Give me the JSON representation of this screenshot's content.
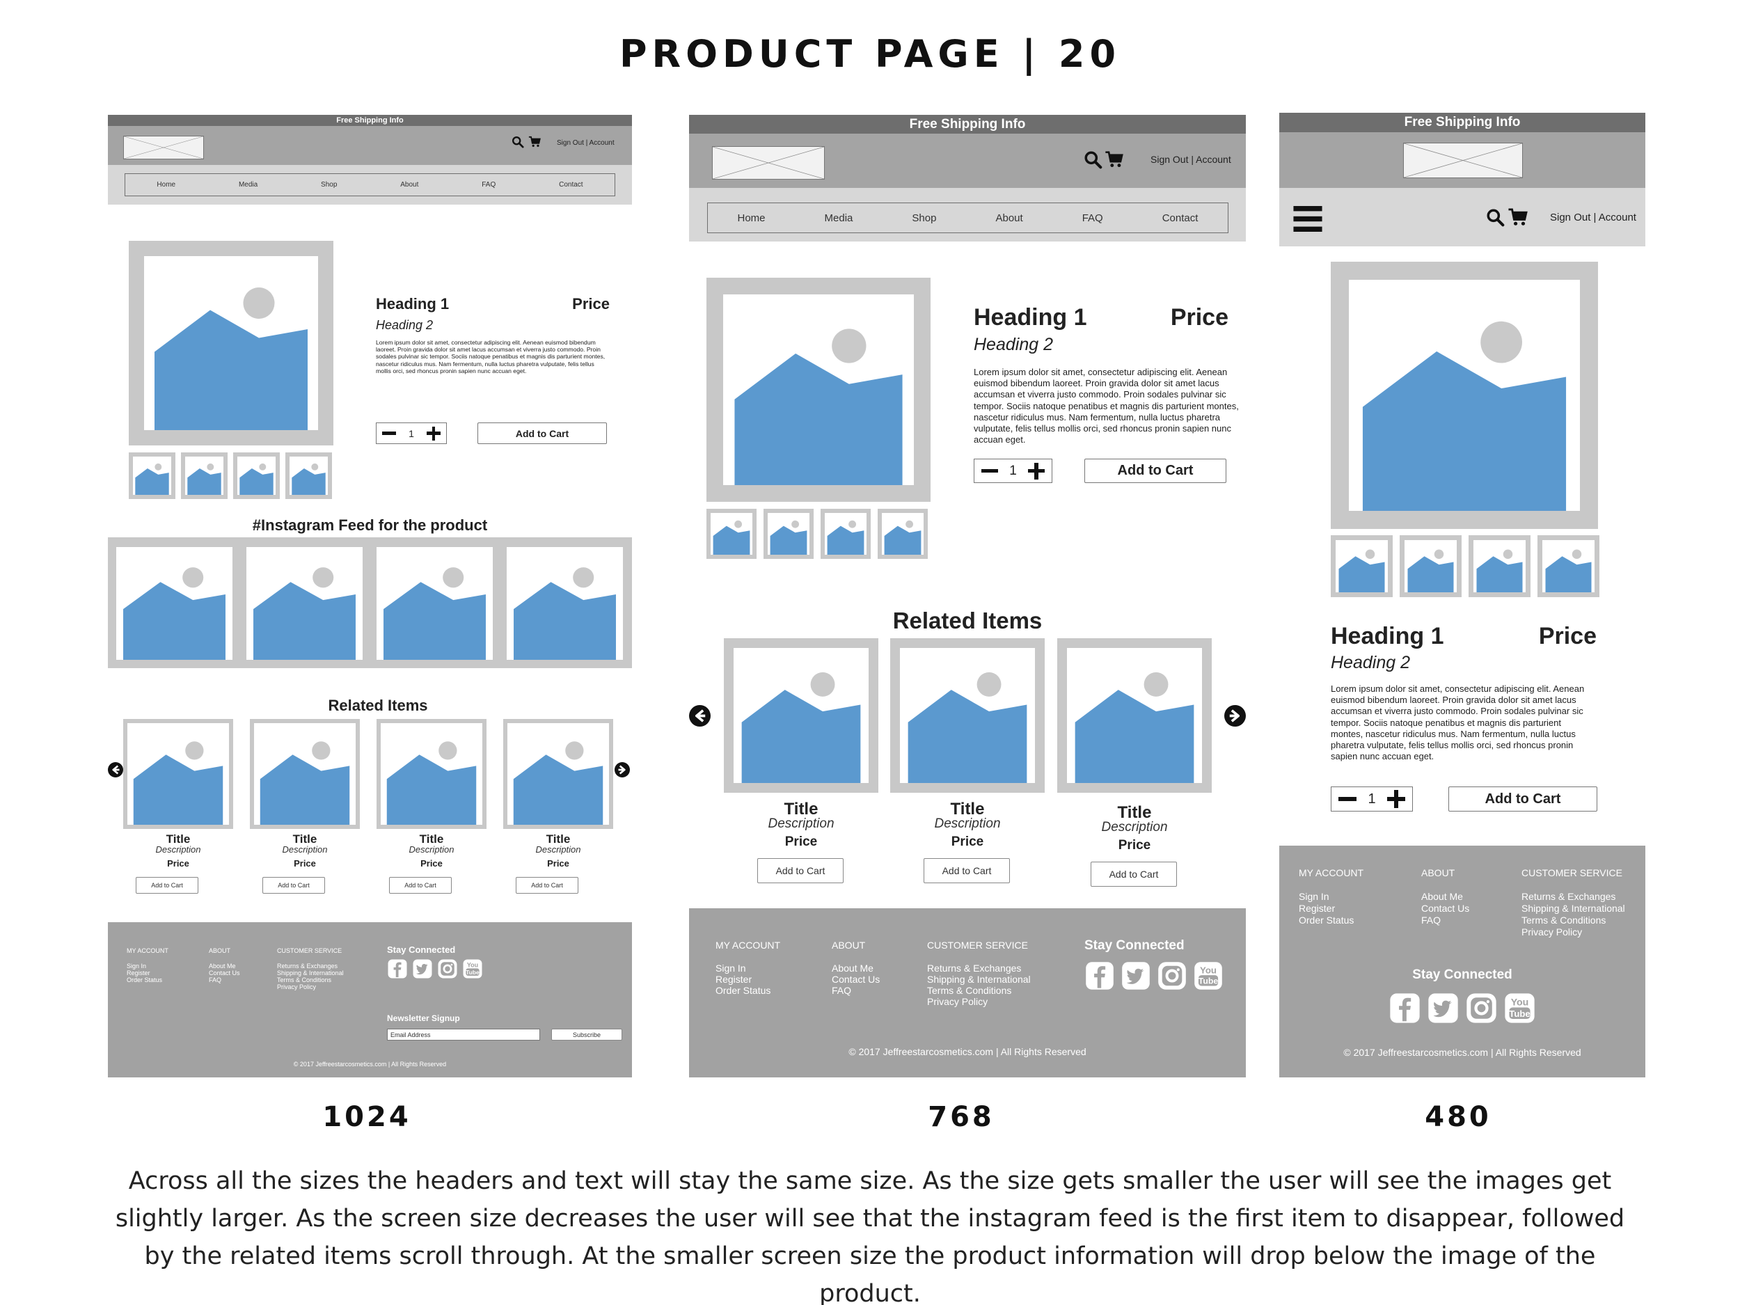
{
  "page": {
    "title": "PRODUCT PAGE | 20",
    "description": "Across all the sizes the headers and text will stay the same size. As the size gets smaller the user will see the images get slightly larger. As the screen size decreases the user will see that the instagram feed is the first item to disappear, followed by the related items scroll through. At the smaller screen size the product information will drop below the image of the product.",
    "colors": {
      "header_gray": "#a4a4a4",
      "shipping_bar": "#6e6e6e",
      "nav_gray": "#d7d7d7",
      "image_blue": "#5b99cf",
      "frame_gray": "#c8c8c8",
      "footer_gray": "#a2a2a2"
    }
  },
  "sizes": [
    "1024",
    "768",
    "480"
  ],
  "header": {
    "shipping": "Free Shipping Info",
    "sign": "Sign Out | Account",
    "nav": [
      "Home",
      "Media",
      "Shop",
      "About",
      "FAQ",
      "Contact"
    ],
    "icons": [
      "logo-placeholder",
      "search-icon",
      "cart-icon",
      "hamburger-menu-icon"
    ]
  },
  "product": {
    "heading1": "Heading 1",
    "heading2": "Heading 2",
    "price": "Price",
    "lorem": "Lorem ipsum dolor sit amet, consectetur adipiscing elit. Aenean euismod bibendum laoreet. Proin gravida dolor sit amet lacus accumsan et viverra justo commodo. Proin sodales pulvinar sic tempor. Sociis natoque penatibus et magnis dis parturient montes, nascetur ridiculus mus. Nam fermentum, nulla luctus pharetra vulputate, felis tellus mollis orci, sed rhoncus pronin sapien nunc accuan eget.",
    "quantity": "1",
    "add_to_cart": "Add to Cart"
  },
  "instagram": {
    "heading": "#Instagram Feed for the product"
  },
  "related": {
    "heading": "Related Items",
    "item_title": "Title",
    "item_description": "Description",
    "item_price": "Price",
    "item_button": "Add to Cart"
  },
  "footer": {
    "my_account": {
      "heading": "MY ACCOUNT",
      "links": [
        "Sign In",
        "Register",
        "Order Status"
      ]
    },
    "about": {
      "heading": "ABOUT",
      "links": [
        "About Me",
        "Contact Us",
        "FAQ"
      ]
    },
    "customer_service": {
      "heading": "CUSTOMER SERVICE",
      "links": [
        "Returns & Exchanges",
        "Shipping & International",
        "Terms & Conditions",
        "Privacy Policy"
      ]
    },
    "stay_connected": "Stay Connected",
    "social_icons": [
      "facebook-icon",
      "twitter-icon",
      "instagram-icon",
      "youtube-icon"
    ],
    "newsletter": "Newsletter Signup",
    "email_placeholder": "Email Address",
    "subscribe": "Subscribe",
    "copyright": "© 2017 Jeffreestarcosmetics.com | All Rights Reserved"
  }
}
